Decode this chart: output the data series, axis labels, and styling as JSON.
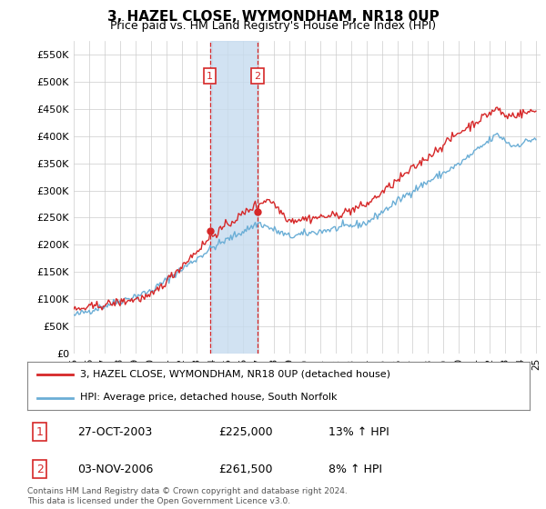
{
  "title": "3, HAZEL CLOSE, WYMONDHAM, NR18 0UP",
  "subtitle": "Price paid vs. HM Land Registry's House Price Index (HPI)",
  "ylabel_ticks": [
    "£0",
    "£50K",
    "£100K",
    "£150K",
    "£200K",
    "£250K",
    "£300K",
    "£350K",
    "£400K",
    "£450K",
    "£500K",
    "£550K"
  ],
  "ytick_values": [
    0,
    50000,
    100000,
    150000,
    200000,
    250000,
    300000,
    350000,
    400000,
    450000,
    500000,
    550000
  ],
  "ylim": [
    0,
    575000
  ],
  "sale1_date": "27-OCT-2003",
  "sale1_price": 225000,
  "sale1_hpi_pct": "13%",
  "sale2_date": "03-NOV-2006",
  "sale2_price": 261500,
  "sale2_hpi_pct": "8%",
  "legend_line1": "3, HAZEL CLOSE, WYMONDHAM, NR18 0UP (detached house)",
  "legend_line2": "HPI: Average price, detached house, South Norfolk",
  "footer": "Contains HM Land Registry data © Crown copyright and database right 2024.\nThis data is licensed under the Open Government Licence v3.0.",
  "hpi_color": "#6baed6",
  "sale_color": "#d62728",
  "shading_color": "#c6dbef",
  "vline_color": "#d62728",
  "background_color": "#ffffff",
  "grid_color": "#cccccc"
}
